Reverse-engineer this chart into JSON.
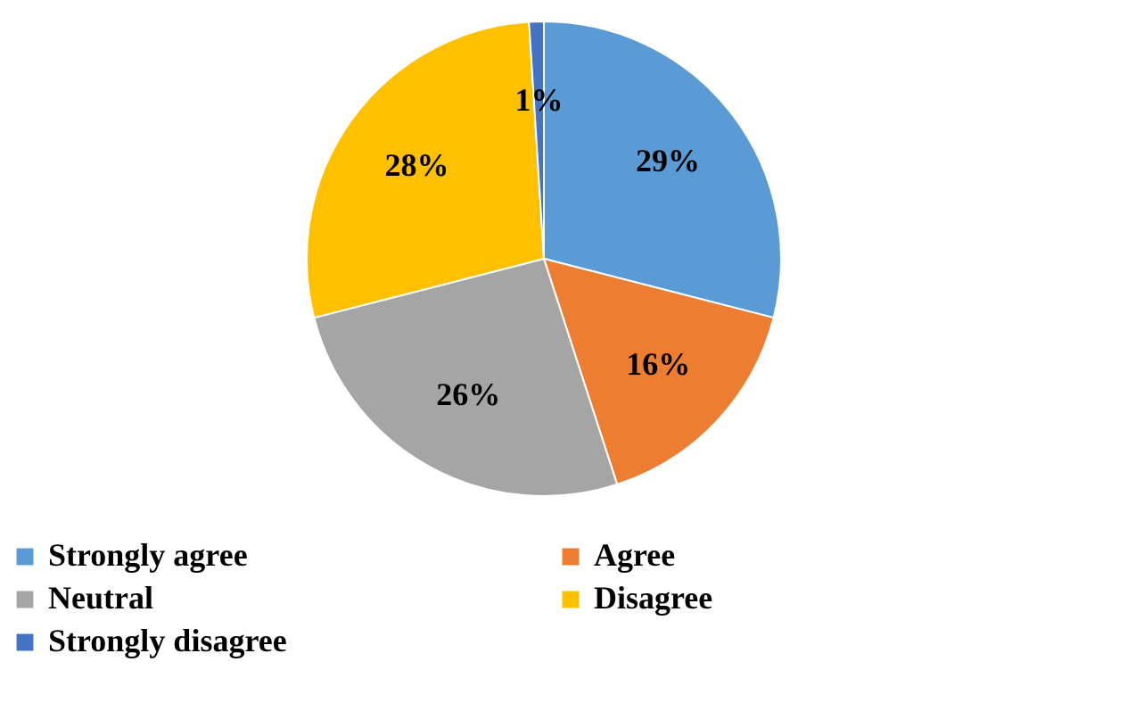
{
  "chart_data": {
    "type": "pie",
    "categories": [
      "Strongly agree",
      "Agree",
      "Neutral",
      "Disagree",
      "Strongly disagree"
    ],
    "values": [
      29,
      16,
      26,
      28,
      1
    ],
    "colors": [
      "#5b9bd5",
      "#ed7d31",
      "#a5a5a5",
      "#ffc000",
      "#4472c4"
    ],
    "value_labels": [
      "29%",
      "16%",
      "26%",
      "28%",
      "1%"
    ],
    "legend": "bottom"
  }
}
